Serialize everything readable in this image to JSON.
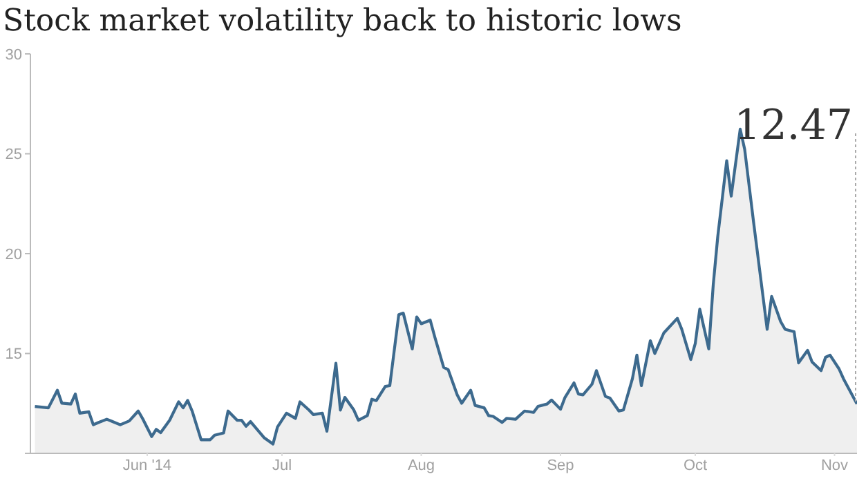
{
  "chart_data": {
    "type": "area",
    "title": "Stock market volatility back to historic lows",
    "x": [
      "2014-05-07",
      "2014-05-10",
      "2014-05-12",
      "2014-05-13",
      "2014-05-15",
      "2014-05-16",
      "2014-05-17",
      "2014-05-19",
      "2014-05-20",
      "2014-05-21",
      "2014-05-23",
      "2014-05-24",
      "2014-05-26",
      "2014-05-28",
      "2014-05-30",
      "2014-05-31",
      "2014-06-02",
      "2014-06-03",
      "2014-06-04",
      "2014-06-06",
      "2014-06-08",
      "2014-06-09",
      "2014-06-10",
      "2014-06-11",
      "2014-06-13",
      "2014-06-15",
      "2014-06-16",
      "2014-06-18",
      "2014-06-19",
      "2014-06-21",
      "2014-06-22",
      "2014-06-23",
      "2014-06-24",
      "2014-06-27",
      "2014-06-29",
      "2014-06-30",
      "2014-07-02",
      "2014-07-04",
      "2014-07-05",
      "2014-07-07",
      "2014-07-08",
      "2014-07-10",
      "2014-07-11",
      "2014-07-13",
      "2014-07-14",
      "2014-07-15",
      "2014-07-17",
      "2014-07-18",
      "2014-07-20",
      "2014-07-21",
      "2014-07-22",
      "2014-07-24",
      "2014-07-25",
      "2014-07-27",
      "2014-07-28",
      "2014-07-30",
      "2014-07-31",
      "2014-08-01",
      "2014-08-03",
      "2014-08-04",
      "2014-08-06",
      "2014-08-07",
      "2014-08-09",
      "2014-08-10",
      "2014-08-12",
      "2014-08-13",
      "2014-08-15",
      "2014-08-16",
      "2014-08-17",
      "2014-08-19",
      "2014-08-20",
      "2014-08-22",
      "2014-08-24",
      "2014-08-26",
      "2014-08-27",
      "2014-08-29",
      "2014-08-30",
      "2014-09-01",
      "2014-09-02",
      "2014-09-04",
      "2014-09-05",
      "2014-09-06",
      "2014-09-08",
      "2014-09-09",
      "2014-09-11",
      "2014-09-12",
      "2014-09-14",
      "2014-09-15",
      "2014-09-17",
      "2014-09-18",
      "2014-09-19",
      "2014-09-21",
      "2014-09-22",
      "2014-09-24",
      "2014-09-27",
      "2014-09-28",
      "2014-09-30",
      "2014-10-01",
      "2014-10-02",
      "2014-10-04",
      "2014-10-05",
      "2014-10-06",
      "2014-10-08",
      "2014-10-09",
      "2014-10-11",
      "2014-10-12",
      "2014-10-14",
      "2014-10-17",
      "2014-10-18",
      "2014-10-20",
      "2014-10-21",
      "2014-10-23",
      "2014-10-24",
      "2014-10-26",
      "2014-10-27",
      "2014-10-29",
      "2014-10-30",
      "2014-10-31",
      "2014-11-02",
      "2014-11-03",
      "2014-11-06"
    ],
    "series": [
      {
        "color": "#3d6a8e",
        "values": [
          12.35,
          12.28,
          13.16,
          12.51,
          12.47,
          12.97,
          12.01,
          12.08,
          11.43,
          11.53,
          11.71,
          11.62,
          11.43,
          11.62,
          12.12,
          11.73,
          10.84,
          11.2,
          11.04,
          11.66,
          12.58,
          12.28,
          12.65,
          12.12,
          10.68,
          10.68,
          10.91,
          11.02,
          12.12,
          11.66,
          11.66,
          11.36,
          11.59,
          10.79,
          10.47,
          11.32,
          12.01,
          11.75,
          12.58,
          12.17,
          11.94,
          12.01,
          11.11,
          14.51,
          12.17,
          12.8,
          12.17,
          11.66,
          11.89,
          12.71,
          12.64,
          13.35,
          13.39,
          16.95,
          17.02,
          15.23,
          16.83,
          16.49,
          16.67,
          15.84,
          14.3,
          14.19,
          12.93,
          12.51,
          13.16,
          12.4,
          12.28,
          11.89,
          11.85,
          11.55,
          11.75,
          11.71,
          12.12,
          12.05,
          12.35,
          12.47,
          12.67,
          12.21,
          12.8,
          13.53,
          12.97,
          12.93,
          13.46,
          14.14,
          12.85,
          12.77,
          12.12,
          12.17,
          13.73,
          14.92,
          13.39,
          15.64,
          15.0,
          16.03,
          16.76,
          16.21,
          14.7,
          15.5,
          17.22,
          15.23,
          18.44,
          20.85,
          24.65,
          22.88,
          26.23,
          25.22,
          21.54,
          16.21,
          17.86,
          16.6,
          16.21,
          16.09,
          14.53,
          15.16,
          14.58,
          14.14,
          14.81,
          14.92,
          14.23,
          13.73,
          12.47
        ]
      }
    ],
    "xlim": [
      "2014-05-06",
      "2014-11-06"
    ],
    "xticks": [
      {
        "value": "2014-06-01",
        "label": "Jun '14"
      },
      {
        "value": "2014-07-01",
        "label": "Jul"
      },
      {
        "value": "2014-08-01",
        "label": "Aug"
      },
      {
        "value": "2014-09-01",
        "label": "Sep"
      },
      {
        "value": "2014-10-01",
        "label": "Oct"
      },
      {
        "value": "2014-11-01",
        "label": "Nov"
      }
    ],
    "ylim": [
      10,
      30
    ],
    "yticks": [
      {
        "value": 10,
        "label": null
      },
      15,
      20,
      25,
      30
    ],
    "annotations": [
      "12.47"
    ],
    "grid": false,
    "legend": false
  }
}
